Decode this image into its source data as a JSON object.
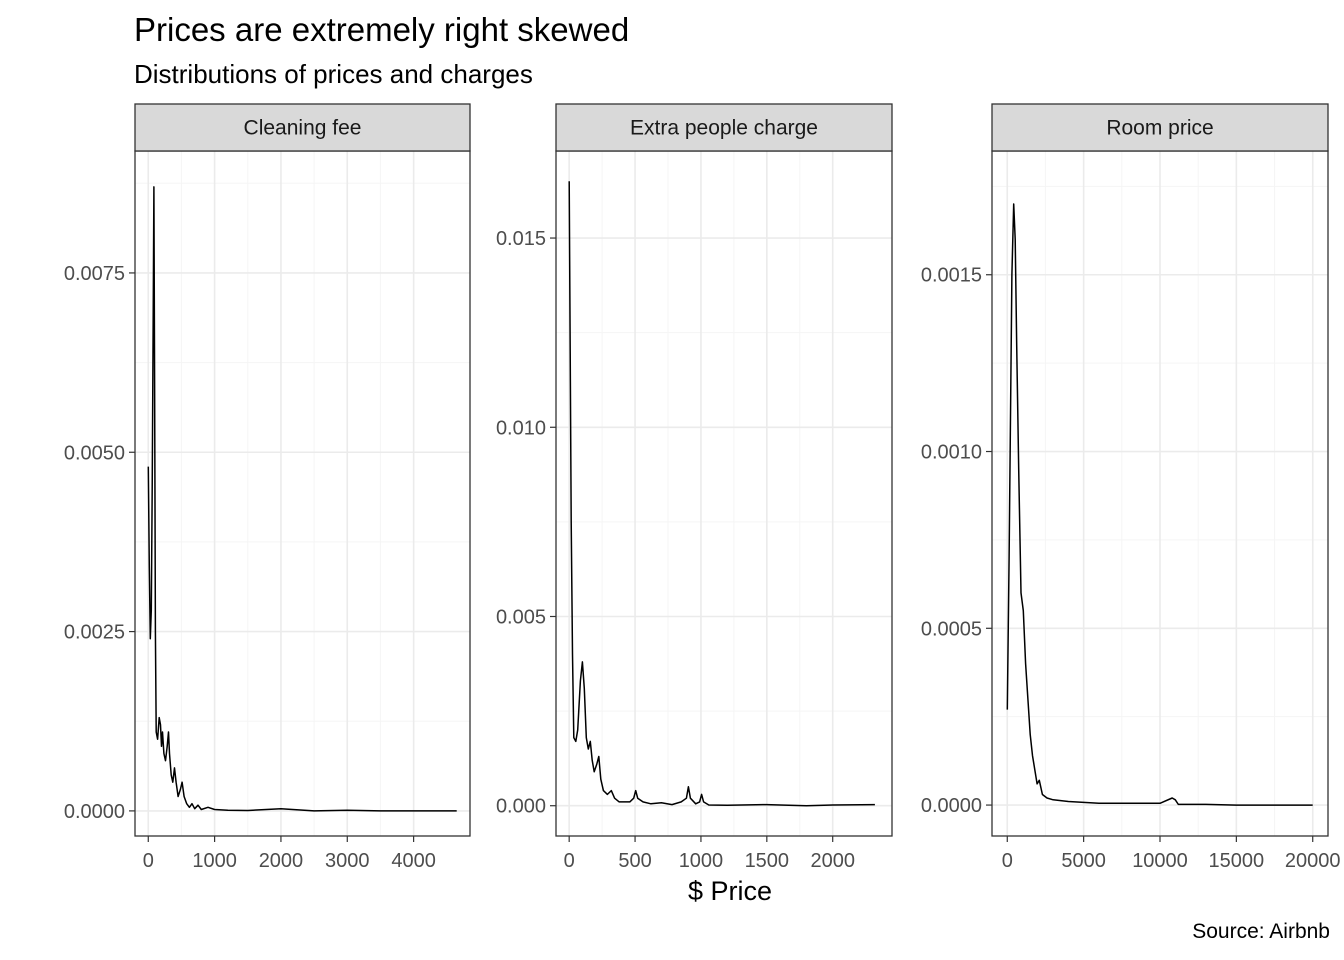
{
  "title": "Prices are extremely right skewed",
  "subtitle": "Distributions of prices and charges",
  "xlabel": "$ Price",
  "caption": "Source: Airbnb",
  "colors": {
    "strip_bg": "#d9d9d9",
    "panel_border": "#333333",
    "grid_major": "#ebebeb",
    "grid_minor": "#f5f5f5",
    "line": "#000000",
    "tick_text": "#4d4d4d"
  },
  "chart_data": [
    {
      "type": "line",
      "facet": "Cleaning fee",
      "xlim": [
        -200,
        4850
      ],
      "ylim": [
        -0.00035,
        0.0092
      ],
      "x_ticks": [
        0,
        1000,
        2000,
        3000,
        4000
      ],
      "x_tick_labels": [
        "0",
        "1000",
        "2000",
        "3000",
        "4000"
      ],
      "y_ticks": [
        0,
        0.0025,
        0.005,
        0.0075
      ],
      "y_tick_labels": [
        "0.0000",
        "0.0025",
        "0.0050",
        "0.0075"
      ],
      "grid": true,
      "points": [
        [
          0,
          0.0048
        ],
        [
          15,
          0.0034
        ],
        [
          30,
          0.0024
        ],
        [
          45,
          0.0028
        ],
        [
          60,
          0.0045
        ],
        [
          75,
          0.0069
        ],
        [
          85,
          0.0087
        ],
        [
          95,
          0.006
        ],
        [
          108,
          0.0025
        ],
        [
          120,
          0.0011
        ],
        [
          140,
          0.001
        ],
        [
          165,
          0.0013
        ],
        [
          185,
          0.0012
        ],
        [
          200,
          0.0009
        ],
        [
          215,
          0.0011
        ],
        [
          235,
          0.0008
        ],
        [
          260,
          0.0007
        ],
        [
          285,
          0.0009
        ],
        [
          305,
          0.0011
        ],
        [
          320,
          0.0008
        ],
        [
          345,
          0.0005
        ],
        [
          370,
          0.0004
        ],
        [
          395,
          0.0006
        ],
        [
          420,
          0.0004
        ],
        [
          450,
          0.0002
        ],
        [
          485,
          0.0003
        ],
        [
          510,
          0.0004
        ],
        [
          540,
          0.0002
        ],
        [
          580,
          0.0001
        ],
        [
          620,
          5e-05
        ],
        [
          660,
          0.0001
        ],
        [
          700,
          3e-05
        ],
        [
          750,
          8e-05
        ],
        [
          800,
          2e-05
        ],
        [
          900,
          5e-05
        ],
        [
          1000,
          2e-05
        ],
        [
          1200,
          1e-05
        ],
        [
          1500,
          5e-06
        ],
        [
          2000,
          3e-05
        ],
        [
          2500,
          0.0
        ],
        [
          3000,
          1e-05
        ],
        [
          3500,
          0.0
        ],
        [
          4000,
          0.0
        ],
        [
          4650,
          0.0
        ]
      ]
    },
    {
      "type": "line",
      "facet": "Extra people charge",
      "xlim": [
        -100,
        2450
      ],
      "ylim": [
        -0.0008,
        0.0173
      ],
      "x_ticks": [
        0,
        500,
        1000,
        1500,
        2000
      ],
      "x_tick_labels": [
        "0",
        "500",
        "1000",
        "1500",
        "2000"
      ],
      "y_ticks": [
        0,
        0.005,
        0.01,
        0.015
      ],
      "y_tick_labels": [
        "0.000",
        "0.005",
        "0.010",
        "0.015"
      ],
      "grid": true,
      "points": [
        [
          0,
          0.0165
        ],
        [
          8,
          0.012
        ],
        [
          15,
          0.0075
        ],
        [
          25,
          0.004
        ],
        [
          35,
          0.0018
        ],
        [
          50,
          0.0017
        ],
        [
          65,
          0.002
        ],
        [
          85,
          0.0033
        ],
        [
          100,
          0.0038
        ],
        [
          115,
          0.0031
        ],
        [
          130,
          0.0018
        ],
        [
          145,
          0.0015
        ],
        [
          160,
          0.0017
        ],
        [
          175,
          0.0012
        ],
        [
          190,
          0.0009
        ],
        [
          210,
          0.0011
        ],
        [
          225,
          0.0013
        ],
        [
          240,
          0.0007
        ],
        [
          260,
          0.0004
        ],
        [
          290,
          0.0003
        ],
        [
          320,
          0.0004
        ],
        [
          345,
          0.0002
        ],
        [
          380,
          0.0001
        ],
        [
          420,
          0.0001
        ],
        [
          460,
          0.0001
        ],
        [
          490,
          0.0002
        ],
        [
          505,
          0.0004
        ],
        [
          520,
          0.0002
        ],
        [
          560,
          0.0001
        ],
        [
          620,
          5e-05
        ],
        [
          700,
          8e-05
        ],
        [
          780,
          3e-05
        ],
        [
          850,
          0.0001
        ],
        [
          890,
          0.0002
        ],
        [
          905,
          0.0005
        ],
        [
          920,
          0.0002
        ],
        [
          960,
          5e-05
        ],
        [
          990,
          0.0001
        ],
        [
          1005,
          0.0003
        ],
        [
          1020,
          0.0001
        ],
        [
          1060,
          2e-05
        ],
        [
          1200,
          1e-05
        ],
        [
          1500,
          3e-05
        ],
        [
          1800,
          0.0
        ],
        [
          2000,
          2e-05
        ],
        [
          2320,
          3e-05
        ]
      ]
    },
    {
      "type": "line",
      "facet": "Room price",
      "xlim": [
        -1000,
        21000
      ],
      "ylim": [
        -8.75e-05,
        0.00185
      ],
      "x_ticks": [
        0,
        5000,
        10000,
        15000,
        20000
      ],
      "x_tick_labels": [
        "0",
        "5000",
        "10000",
        "15000",
        "20000"
      ],
      "y_ticks": [
        0,
        0.0005,
        0.001,
        0.0015
      ],
      "y_tick_labels": [
        "0.0000",
        "0.0005",
        "0.0010",
        "0.0015"
      ],
      "grid": true,
      "points": [
        [
          0,
          0.00027
        ],
        [
          120,
          0.0007
        ],
        [
          300,
          0.0015
        ],
        [
          420,
          0.0017
        ],
        [
          520,
          0.0016
        ],
        [
          620,
          0.0013
        ],
        [
          750,
          0.00095
        ],
        [
          900,
          0.0006
        ],
        [
          1050,
          0.00055
        ],
        [
          1200,
          0.0004
        ],
        [
          1350,
          0.0003
        ],
        [
          1500,
          0.0002
        ],
        [
          1650,
          0.00014
        ],
        [
          1800,
          0.0001
        ],
        [
          1950,
          6e-05
        ],
        [
          2100,
          7e-05
        ],
        [
          2300,
          3e-05
        ],
        [
          2600,
          2e-05
        ],
        [
          3000,
          1.5e-05
        ],
        [
          4000,
          1e-05
        ],
        [
          6000,
          5e-06
        ],
        [
          8000,
          5e-06
        ],
        [
          10000,
          5e-06
        ],
        [
          10800,
          2e-05
        ],
        [
          11000,
          1.5e-05
        ],
        [
          11200,
          2e-06
        ],
        [
          13000,
          2e-06
        ],
        [
          15000,
          0.0
        ],
        [
          18000,
          0.0
        ],
        [
          20000,
          0.0
        ]
      ]
    }
  ]
}
